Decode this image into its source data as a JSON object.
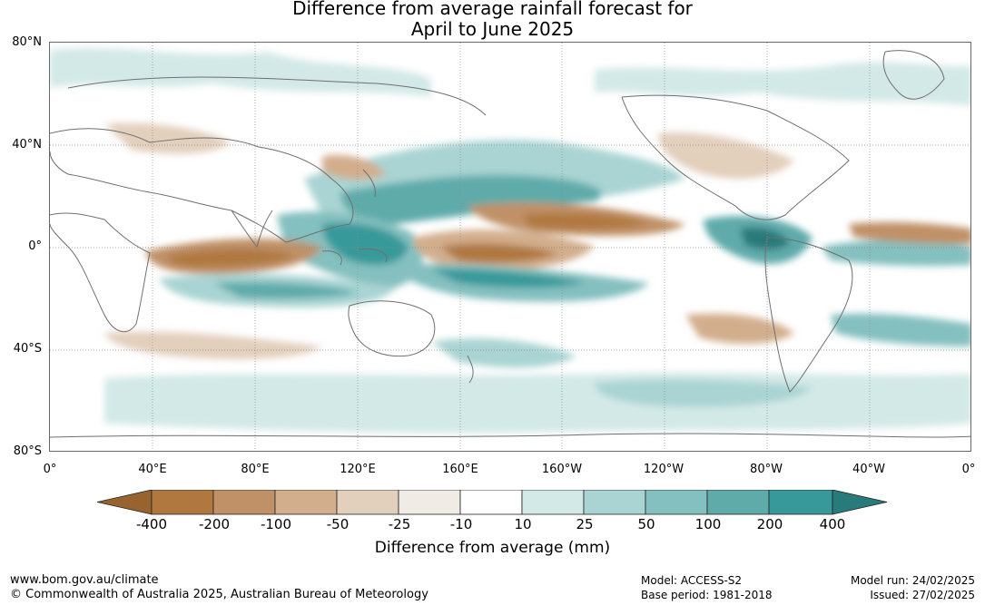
{
  "title_line1": "Difference from average rainfall forecast for",
  "title_line2": "April to June 2025",
  "lat_labels": [
    "80°N",
    "40°N",
    "0°",
    "40°S",
    "80°S"
  ],
  "lon_labels": [
    "0°",
    "40°E",
    "80°E",
    "120°E",
    "160°E",
    "160°W",
    "120°W",
    "80°W",
    "40°W",
    "0°"
  ],
  "colorbar": {
    "title": "Difference from average (mm)",
    "labels": [
      "-400",
      "-200",
      "-100",
      "-50",
      "-25",
      "-10",
      "10",
      "25",
      "50",
      "100",
      "200",
      "400"
    ],
    "colors": [
      "#99632f",
      "#b0783f",
      "#c09167",
      "#d2ae8d",
      "#e2cfbc",
      "#f1ebe5",
      "#ffffff",
      "#d3e9e7",
      "#a9d4d3",
      "#84c0bf",
      "#5eabaa",
      "#37999a",
      "#297a7b"
    ]
  },
  "footer": {
    "website": "www.bom.gov.au/climate",
    "copyright": "© Commonwealth of Australia 2025, Australian Bureau of Meteorology",
    "model": "Model: ACCESS-S2",
    "base_period": "Base period: 1981-2018",
    "model_run": "Model run: 24/02/2025",
    "issued": "Issued: 27/02/2025"
  }
}
